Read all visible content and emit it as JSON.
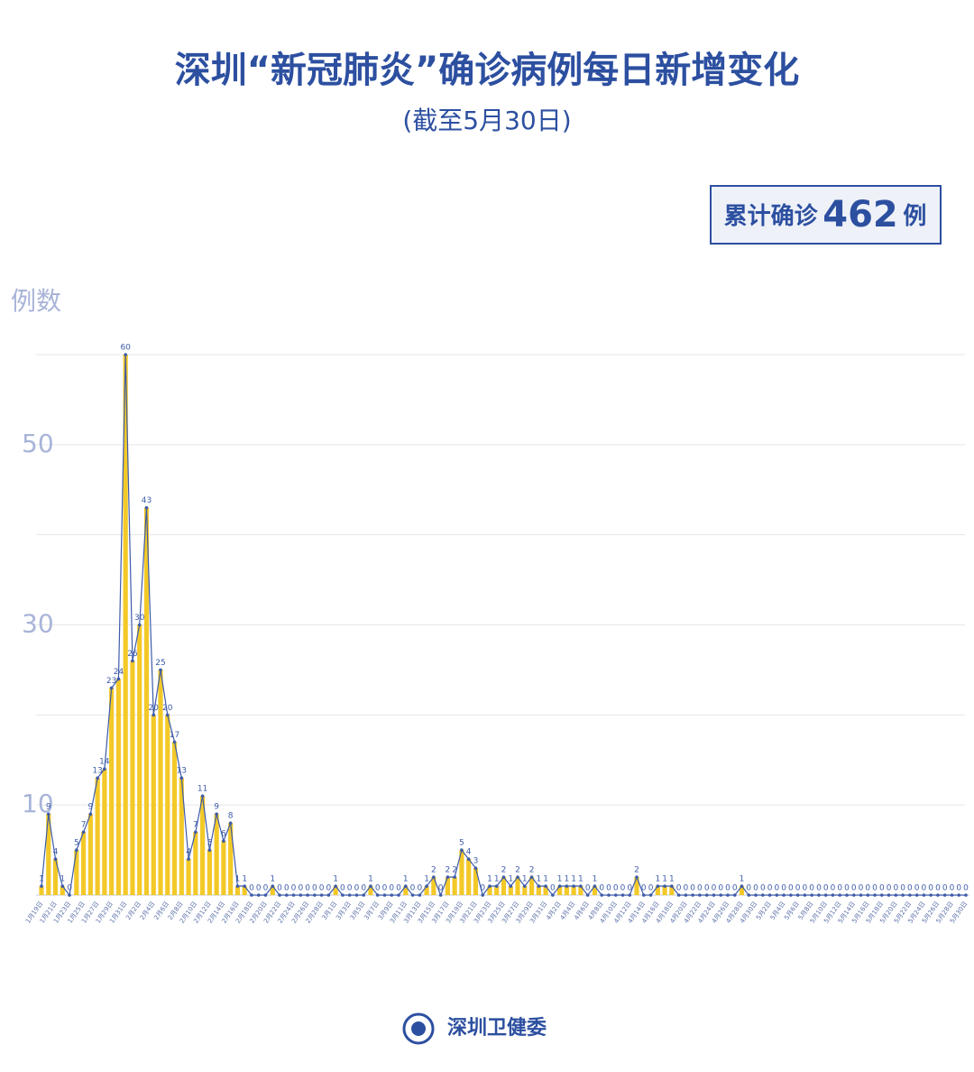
{
  "chart_data": {
    "type": "area-bar",
    "title": "深圳“新冠肺炎”确诊病例每日新增变化",
    "subtitle": "(截至5月30日)",
    "summary": {
      "label": "累计确诊",
      "value": 462,
      "unit": "例"
    },
    "ylabel": "例数",
    "footer": "深圳卫健委",
    "categories": [
      "1月19日",
      null,
      "1月21日",
      null,
      "1月23日",
      null,
      "1月25日",
      null,
      "1月27日",
      null,
      "1月29日",
      null,
      "1月31日",
      null,
      "2月2日",
      null,
      "2月4日",
      null,
      "2月6日",
      null,
      "2月8日",
      null,
      "2月10日",
      null,
      "2月12日",
      null,
      "2月14日",
      null,
      "2月16日",
      null,
      "2月18日",
      null,
      "2月20日",
      null,
      "2月22日",
      null,
      "2月24日",
      null,
      "2月26日",
      null,
      "2月28日",
      null,
      "3月1日",
      null,
      "3月3日",
      null,
      "3月5日",
      null,
      "3月7日",
      null,
      "3月9日",
      null,
      "3月11日",
      null,
      "3月13日",
      null,
      "3月15日",
      null,
      "3月17日",
      null,
      "3月19日",
      null,
      "3月21日",
      null,
      "3月23日",
      null,
      "3月25日",
      null,
      "3月27日",
      null,
      "3月29日",
      null,
      "3月31日",
      null,
      "4月2日",
      null,
      "4月4日",
      null,
      "4月6日",
      null,
      "4月8日",
      null,
      "4月10日",
      null,
      "4月12日",
      null,
      "4月14日",
      null,
      "4月16日",
      null,
      "4月18日",
      null,
      "4月20日",
      null,
      "4月22日",
      null,
      "4月24日",
      null,
      "4月26日",
      null,
      "4月28日",
      null,
      "4月30日",
      null,
      "5月2日",
      null,
      "5月4日",
      null,
      "5月6日",
      null,
      "5月8日",
      null,
      "5月10日",
      null,
      "5月12日",
      null,
      "5月14日",
      null,
      "5月16日",
      null,
      "5月18日",
      null,
      "5月20日",
      null,
      "5月22日",
      null,
      "5月24日",
      null,
      "5月26日",
      null,
      "5月28日",
      null,
      "5月30日"
    ],
    "values": [
      1,
      9,
      4,
      1,
      0,
      5,
      7,
      9,
      13,
      14,
      23,
      24,
      60,
      26,
      30,
      43,
      20,
      25,
      20,
      17,
      13,
      4,
      7,
      11,
      5,
      9,
      6,
      8,
      1,
      1,
      0,
      0,
      0,
      1,
      0,
      0,
      0,
      0,
      0,
      0,
      0,
      0,
      1,
      0,
      0,
      0,
      0,
      1,
      0,
      0,
      0,
      0,
      1,
      0,
      0,
      1,
      2,
      0,
      2,
      2,
      5,
      4,
      3,
      0,
      1,
      1,
      2,
      1,
      2,
      1,
      2,
      1,
      1,
      0,
      1,
      1,
      1,
      1,
      0,
      1,
      0,
      0,
      0,
      0,
      0,
      2,
      0,
      0,
      1,
      1,
      1,
      0,
      0,
      0,
      0,
      0,
      0,
      0,
      0,
      0,
      1,
      0,
      0,
      0,
      0,
      0,
      0,
      0,
      0,
      0,
      0,
      0,
      0,
      0,
      0,
      0,
      0,
      0,
      0,
      0,
      0,
      0,
      0,
      0,
      0,
      0,
      0,
      0,
      0,
      0,
      0,
      0,
      0
    ],
    "color": "#f3c928",
    "line_color": "#3d5ba9",
    "ylim": [
      0,
      60
    ],
    "yticks": [
      10,
      30,
      50
    ],
    "y_minor_ticks": [
      20,
      40,
      60
    ],
    "grid": true
  }
}
